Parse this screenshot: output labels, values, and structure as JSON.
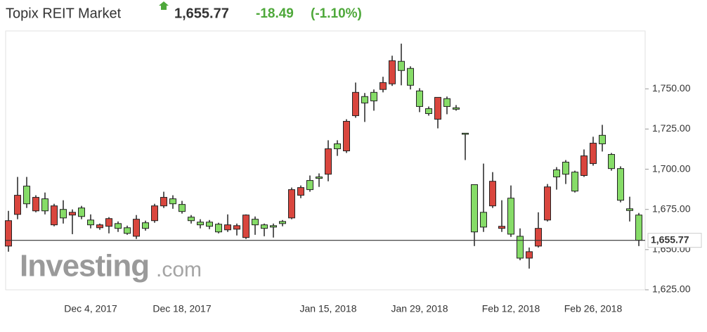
{
  "chart_data": {
    "type": "candlestick",
    "title": "Topix REIT Market",
    "change": "-18.49",
    "change_pct": "(-1.10%)",
    "price_line": {
      "value": 1655.77,
      "label": "1,655.77"
    },
    "watermark": {
      "brand": "Investing",
      "suffix": ".com"
    },
    "up_color": "#d9463e",
    "down_color": "#86dc68",
    "header_change_color": "#4ea83a",
    "ylim": [
      1625,
      1786
    ],
    "yticks": [
      {
        "value": 1625,
        "label": "1,625.00"
      },
      {
        "value": 1650,
        "label": "1,650.00"
      },
      {
        "value": 1675,
        "label": "1,675.00"
      },
      {
        "value": 1700,
        "label": "1,700.00"
      },
      {
        "value": 1725,
        "label": "1,725.00"
      },
      {
        "value": 1750,
        "label": "1,750.00"
      }
    ],
    "categories": [
      null,
      null,
      null,
      null,
      null,
      null,
      null,
      null,
      null,
      "Dec 4, 2017",
      null,
      null,
      null,
      null,
      null,
      null,
      null,
      null,
      null,
      "Dec 18, 2017",
      null,
      null,
      null,
      null,
      null,
      null,
      null,
      null,
      null,
      null,
      null,
      null,
      null,
      null,
      null,
      "Jan 15, 2018",
      null,
      null,
      null,
      null,
      null,
      null,
      null,
      null,
      null,
      "Jan 29, 2018",
      null,
      null,
      null,
      null,
      null,
      null,
      null,
      null,
      null,
      "Feb 12, 2018",
      null,
      null,
      null,
      null,
      null,
      null,
      null,
      null,
      "Feb 26, 2018",
      null,
      null,
      null,
      null,
      null
    ],
    "open": [
      1652.2,
      1671.9,
      1689.5,
      1674.1,
      1681.6,
      1665.4,
      1675.0,
      1671.5,
      1675.9,
      1668.4,
      1663.6,
      1664.5,
      1666.2,
      1663.6,
      1658.3,
      1666.7,
      1668.0,
      1677.2,
      1681.6,
      1678.1,
      1670.2,
      1667.1,
      1667.1,
      1665.8,
      1662.3,
      1662.7,
      1657.5,
      1668.9,
      1665.4,
      1664.9,
      1667.5,
      1669.7,
      1683.8,
      1693.0,
      1695.2,
      1696.9,
      1715.8,
      1711.4,
      1733.3,
      1745.2,
      1747.8,
      1749.6,
      1753.1,
      1767.1,
      1762.7,
      1748.7,
      1737.7,
      1731.1,
      1743.9,
      1738.2,
      1722.4,
      1690.4,
      1673.2,
      1677.2,
      1663.2,
      1682.0,
      1658.3,
      1644.7,
      1652.2,
      1668.4,
      1699.6,
      1704.4,
      1698.2,
      1696.1,
      1703.5,
      1721.1,
      1709.2,
      1700.4,
      1675.4,
      1671.5
    ],
    "high": [
      1674.1,
      1695.2,
      1695.2,
      1683.8,
      1685.5,
      1678.5,
      1680.7,
      1675.0,
      1677.2,
      1671.9,
      1666.2,
      1670.2,
      1667.5,
      1664.9,
      1671.5,
      1668.0,
      1678.5,
      1686.0,
      1683.8,
      1680.3,
      1671.5,
      1668.9,
      1668.4,
      1666.7,
      1671.9,
      1666.2,
      1671.9,
      1670.6,
      1666.2,
      1666.2,
      1668.4,
      1688.6,
      1689.9,
      1696.1,
      1697.4,
      1718.0,
      1718.0,
      1731.1,
      1753.9,
      1747.4,
      1749.6,
      1757.5,
      1770.6,
      1778.1,
      1764.0,
      1750.4,
      1739.0,
      1744.7,
      1745.2,
      1739.9,
      1722.4,
      1690.4,
      1703.5,
      1698.2,
      1680.7,
      1689.9,
      1663.2,
      1651.3,
      1673.2,
      1690.8,
      1701.3,
      1705.7,
      1699.1,
      1712.3,
      1720.2,
      1727.6,
      1710.1,
      1701.8,
      1682.9,
      1672.8
    ],
    "low": [
      1648.7,
      1668.9,
      1675.9,
      1673.2,
      1671.9,
      1664.5,
      1666.2,
      1659.6,
      1668.9,
      1663.2,
      1662.3,
      1660.1,
      1661.0,
      1659.2,
      1656.6,
      1661.8,
      1666.7,
      1675.9,
      1675.4,
      1672.4,
      1666.2,
      1663.2,
      1662.7,
      1660.1,
      1661.0,
      1658.8,
      1656.6,
      1659.2,
      1658.3,
      1657.5,
      1664.5,
      1668.9,
      1682.0,
      1686.0,
      1689.0,
      1692.5,
      1708.3,
      1710.1,
      1732.0,
      1729.4,
      1736.4,
      1747.8,
      1751.8,
      1752.2,
      1749.6,
      1735.5,
      1733.3,
      1725.4,
      1734.2,
      1736.4,
      1705.7,
      1652.2,
      1661.0,
      1675.9,
      1661.0,
      1657.9,
      1643.4,
      1638.2,
      1651.3,
      1667.5,
      1687.3,
      1690.8,
      1685.5,
      1695.2,
      1702.2,
      1711.0,
      1699.1,
      1679.4,
      1667.5,
      1652.2
    ],
    "close": [
      1668.0,
      1683.8,
      1678.5,
      1682.5,
      1674.1,
      1677.2,
      1669.7,
      1673.2,
      1670.6,
      1665.4,
      1665.4,
      1669.3,
      1663.2,
      1660.1,
      1668.9,
      1663.2,
      1677.2,
      1682.5,
      1678.5,
      1673.7,
      1668.0,
      1665.4,
      1664.5,
      1661.0,
      1665.4,
      1664.9,
      1671.5,
      1665.4,
      1663.2,
      1664.0,
      1666.2,
      1687.3,
      1688.6,
      1687.3,
      1694.3,
      1712.7,
      1712.7,
      1729.8,
      1747.8,
      1741.2,
      1742.5,
      1753.9,
      1767.5,
      1761.4,
      1752.2,
      1739.0,
      1734.6,
      1744.7,
      1739.0,
      1737.3,
      1721.9,
      1661.0,
      1664.0,
      1692.5,
      1664.5,
      1659.6,
      1644.7,
      1648.7,
      1663.2,
      1689.0,
      1695.2,
      1696.9,
      1686.4,
      1708.3,
      1716.2,
      1715.8,
      1700.4,
      1680.7,
      1674.3,
      1655.8
    ]
  }
}
